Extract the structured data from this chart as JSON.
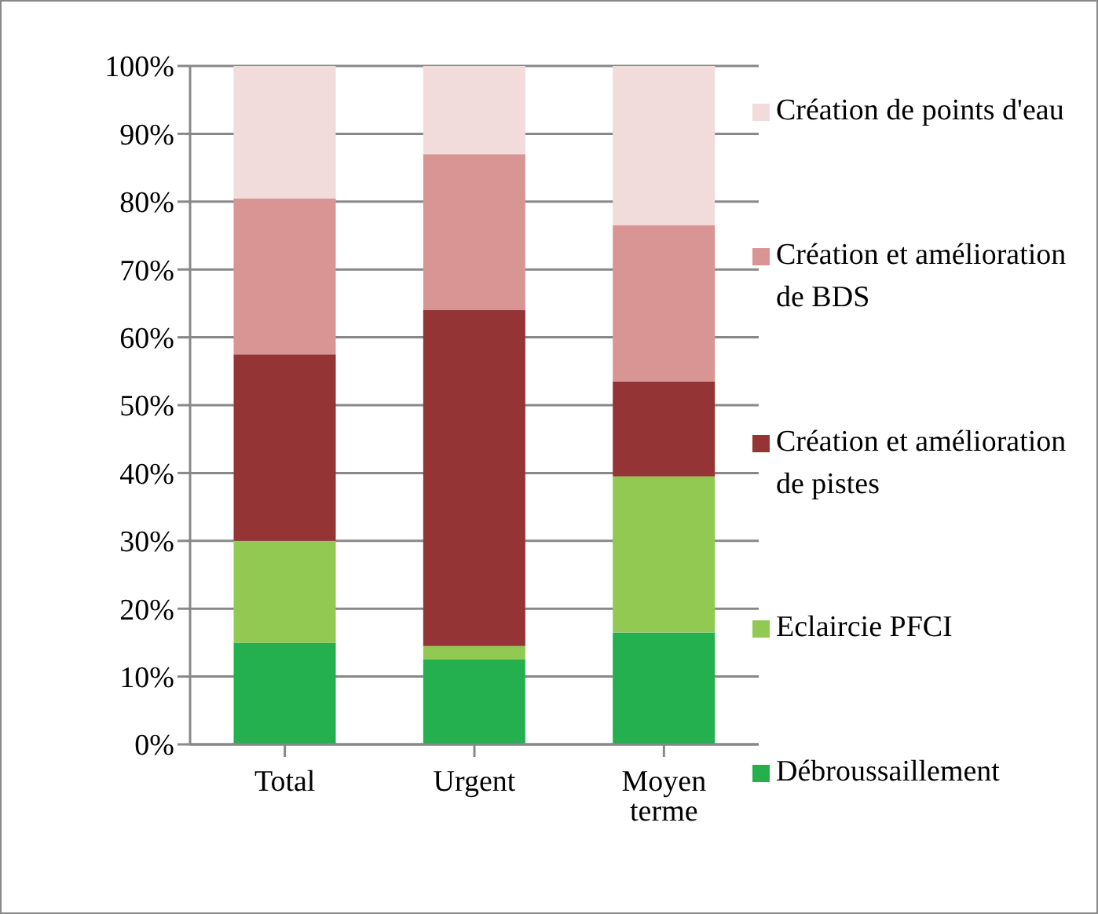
{
  "chart_data": {
    "type": "bar",
    "stacked": true,
    "categories": [
      "Total",
      "Urgent",
      "Moyen terme"
    ],
    "series": [
      {
        "name": "Débroussaillement",
        "color": "#24b04e",
        "values": [
          15,
          12.5,
          16.5
        ]
      },
      {
        "name": "Eclaircie PFCI",
        "color": "#92c952",
        "values": [
          15,
          2,
          23
        ]
      },
      {
        "name": "Création et amélioration de pistes",
        "color": "#943434",
        "values": [
          27.5,
          49.5,
          14
        ]
      },
      {
        "name": "Création et amélioration de BDS",
        "color": "#d99594",
        "values": [
          23,
          23,
          23
        ]
      },
      {
        "name": "Création de points d'eau",
        "color": "#f2dcdb",
        "values": [
          19.5,
          13,
          23.5
        ]
      }
    ],
    "ylim": [
      0,
      100
    ],
    "yticks": [
      {
        "value": 0,
        "label": "0%"
      },
      {
        "value": 10,
        "label": "10%"
      },
      {
        "value": 20,
        "label": "20%"
      },
      {
        "value": 30,
        "label": "30%"
      },
      {
        "value": 40,
        "label": "40%"
      },
      {
        "value": 50,
        "label": "50%"
      },
      {
        "value": 60,
        "label": "60%"
      },
      {
        "value": 70,
        "label": "70%"
      },
      {
        "value": 80,
        "label": "80%"
      },
      {
        "value": 90,
        "label": "90%"
      },
      {
        "value": 100,
        "label": "100%"
      }
    ],
    "grid": "y",
    "legend": "right"
  }
}
